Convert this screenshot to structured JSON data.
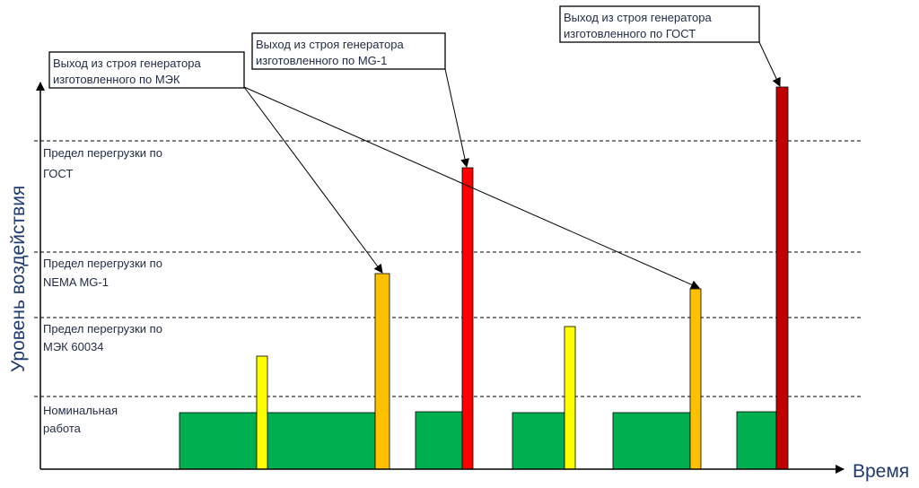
{
  "colors": {
    "green": "#00b050",
    "yellow": "#ffff00",
    "orange": "#ffc000",
    "red": "#ff0000",
    "darkred": "#c00000",
    "text": "#1f2a44",
    "axis_title": "#1f3a6e"
  },
  "axes": {
    "y_title": "Уровень воздействия",
    "x_title": "Время"
  },
  "levels": {
    "nominal": [
      "Номинальная",
      "работа"
    ],
    "iec": [
      "Предел перегрузки по",
      "МЭК 60034"
    ],
    "nema": [
      "Предел перегрузки по",
      "NEMA MG-1"
    ],
    "gost": [
      "Предел перегрузки по",
      "ГОСТ"
    ]
  },
  "callouts": {
    "iec": [
      "Выход из строя генератора",
      "изготовленного по МЭК"
    ],
    "nema": [
      "Выход из строя генератора",
      "изготовленного по MG-1"
    ],
    "gost": [
      "Выход из строя генератора",
      "изготовленного по ГОСТ"
    ]
  }
}
